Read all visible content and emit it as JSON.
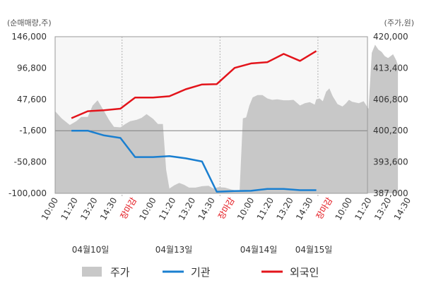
{
  "chart_data": {
    "type": "line",
    "left_unit": "(순매매량,주)",
    "right_unit": "(주가,원)",
    "left_axis": {
      "ticks": [
        "146,000",
        "96,800",
        "47,600",
        "-1,600",
        "-50,800",
        "-100,000"
      ],
      "ylim": [
        -100000,
        146000
      ]
    },
    "right_axis": {
      "ticks": [
        "420,000",
        "413,400",
        "406,800",
        "400,200",
        "393,600",
        "387,000"
      ],
      "ylim": [
        387000,
        420000
      ]
    },
    "x_ticks": [
      {
        "label": "10:00",
        "special": false
      },
      {
        "label": "11:20",
        "special": false
      },
      {
        "label": "13:20",
        "special": false
      },
      {
        "label": "14:30",
        "special": false
      },
      {
        "label": "장마감",
        "special": true
      },
      {
        "label": "10:00",
        "special": false
      },
      {
        "label": "11:20",
        "special": false
      },
      {
        "label": "13:20",
        "special": false
      },
      {
        "label": "14:30",
        "special": false
      },
      {
        "label": "장마감",
        "special": true
      },
      {
        "label": "10:00",
        "special": false
      },
      {
        "label": "11:20",
        "special": false
      },
      {
        "label": "13:20",
        "special": false
      },
      {
        "label": "14:30",
        "special": false
      },
      {
        "label": "장마감",
        "special": true
      },
      {
        "label": "10:00",
        "special": false
      },
      {
        "label": "11:20",
        "special": false
      },
      {
        "label": "13:20",
        "special": false
      },
      {
        "label": "14:30",
        "special": false
      }
    ],
    "dates": [
      "04월10일",
      "04월13일",
      "04월14일",
      "04월15일"
    ],
    "legend": [
      {
        "name": "주가",
        "color": "#c8c8c8",
        "shape": "box"
      },
      {
        "name": "기관",
        "color": "#1a7fd0",
        "shape": "line"
      },
      {
        "name": "외국인",
        "color": "#e3141b",
        "shape": "line"
      }
    ],
    "series": [
      {
        "name": "기관",
        "axis": "left",
        "color": "#1a7fd0",
        "points": [
          [
            1.0,
            -1600
          ],
          [
            2.0,
            -1600
          ],
          [
            3.0,
            -9000
          ],
          [
            4.0,
            -13000
          ],
          [
            4.9,
            -43000
          ],
          [
            6.0,
            -43000
          ],
          [
            7.0,
            -41500
          ],
          [
            8.0,
            -45000
          ],
          [
            9.0,
            -50000
          ],
          [
            9.9,
            -97500
          ],
          [
            11.0,
            -96500
          ],
          [
            12.0,
            -96000
          ],
          [
            13.0,
            -93000
          ],
          [
            14.0,
            -93000
          ],
          [
            15.0,
            -95000
          ],
          [
            16.0,
            -95000
          ]
        ]
      },
      {
        "name": "외국인",
        "axis": "left",
        "color": "#e3141b",
        "points": [
          [
            1.0,
            18000
          ],
          [
            2.0,
            29000
          ],
          [
            3.0,
            30500
          ],
          [
            4.0,
            33000
          ],
          [
            4.9,
            50500
          ],
          [
            6.0,
            50500
          ],
          [
            7.0,
            52500
          ],
          [
            8.0,
            63500
          ],
          [
            9.0,
            71000
          ],
          [
            9.9,
            71500
          ],
          [
            11.0,
            97000
          ],
          [
            12.0,
            104000
          ],
          [
            13.0,
            106000
          ],
          [
            14.0,
            119000
          ],
          [
            15.0,
            108000
          ],
          [
            16.0,
            123500
          ]
        ]
      },
      {
        "name": "주가",
        "axis": "right",
        "color": "#c8c8c8",
        "type": "area",
        "points": [
          [
            0.0,
            404300
          ],
          [
            0.4,
            402800
          ],
          [
            0.9,
            401400
          ],
          [
            1.3,
            402200
          ],
          [
            1.6,
            403100
          ],
          [
            2.0,
            403100
          ],
          [
            2.3,
            405500
          ],
          [
            2.6,
            406600
          ],
          [
            2.9,
            404900
          ],
          [
            3.3,
            402500
          ],
          [
            3.6,
            401000
          ],
          [
            4.0,
            400900
          ],
          [
            4.3,
            401600
          ],
          [
            4.6,
            402200
          ],
          [
            5.0,
            402500
          ],
          [
            5.3,
            402900
          ],
          [
            5.6,
            403700
          ],
          [
            6.0,
            402700
          ],
          [
            6.3,
            401600
          ],
          [
            6.6,
            401600
          ],
          [
            6.8,
            392000
          ],
          [
            7.0,
            388000
          ],
          [
            7.3,
            388700
          ],
          [
            7.6,
            389200
          ],
          [
            7.9,
            388800
          ],
          [
            8.2,
            388200
          ],
          [
            8.6,
            388200
          ],
          [
            9.0,
            388500
          ],
          [
            9.4,
            388600
          ],
          [
            9.7,
            388000
          ],
          [
            10.0,
            388300
          ],
          [
            10.4,
            388200
          ],
          [
            10.8,
            387800
          ],
          [
            11.1,
            387600
          ],
          [
            11.3,
            387300
          ],
          [
            11.5,
            402800
          ],
          [
            11.7,
            403000
          ],
          [
            11.9,
            405500
          ],
          [
            12.1,
            407200
          ],
          [
            12.4,
            407700
          ],
          [
            12.7,
            407700
          ],
          [
            13.0,
            407000
          ],
          [
            13.3,
            406700
          ],
          [
            13.6,
            406800
          ],
          [
            14.0,
            406600
          ],
          [
            14.3,
            406600
          ],
          [
            14.6,
            406700
          ],
          [
            15.0,
            405500
          ],
          [
            15.3,
            406000
          ],
          [
            15.6,
            406200
          ],
          [
            15.9,
            405700
          ],
          [
            16.0,
            406800
          ],
          [
            16.2,
            407000
          ],
          [
            16.4,
            406400
          ],
          [
            16.6,
            408400
          ],
          [
            16.8,
            409100
          ],
          [
            17.0,
            407500
          ],
          [
            17.3,
            405800
          ],
          [
            17.6,
            405300
          ],
          [
            17.8,
            405900
          ],
          [
            18.0,
            406700
          ],
          [
            18.2,
            406300
          ],
          [
            18.6,
            406000
          ],
          [
            18.9,
            406400
          ],
          [
            19.2,
            404800
          ],
          [
            19.4,
            416600
          ],
          [
            19.6,
            418300
          ],
          [
            19.8,
            417300
          ],
          [
            20.0,
            416800
          ],
          [
            20.2,
            415900
          ],
          [
            20.4,
            415500
          ],
          [
            20.7,
            416300
          ],
          [
            20.9,
            415000
          ],
          [
            21.0,
            414000
          ]
        ]
      }
    ]
  }
}
